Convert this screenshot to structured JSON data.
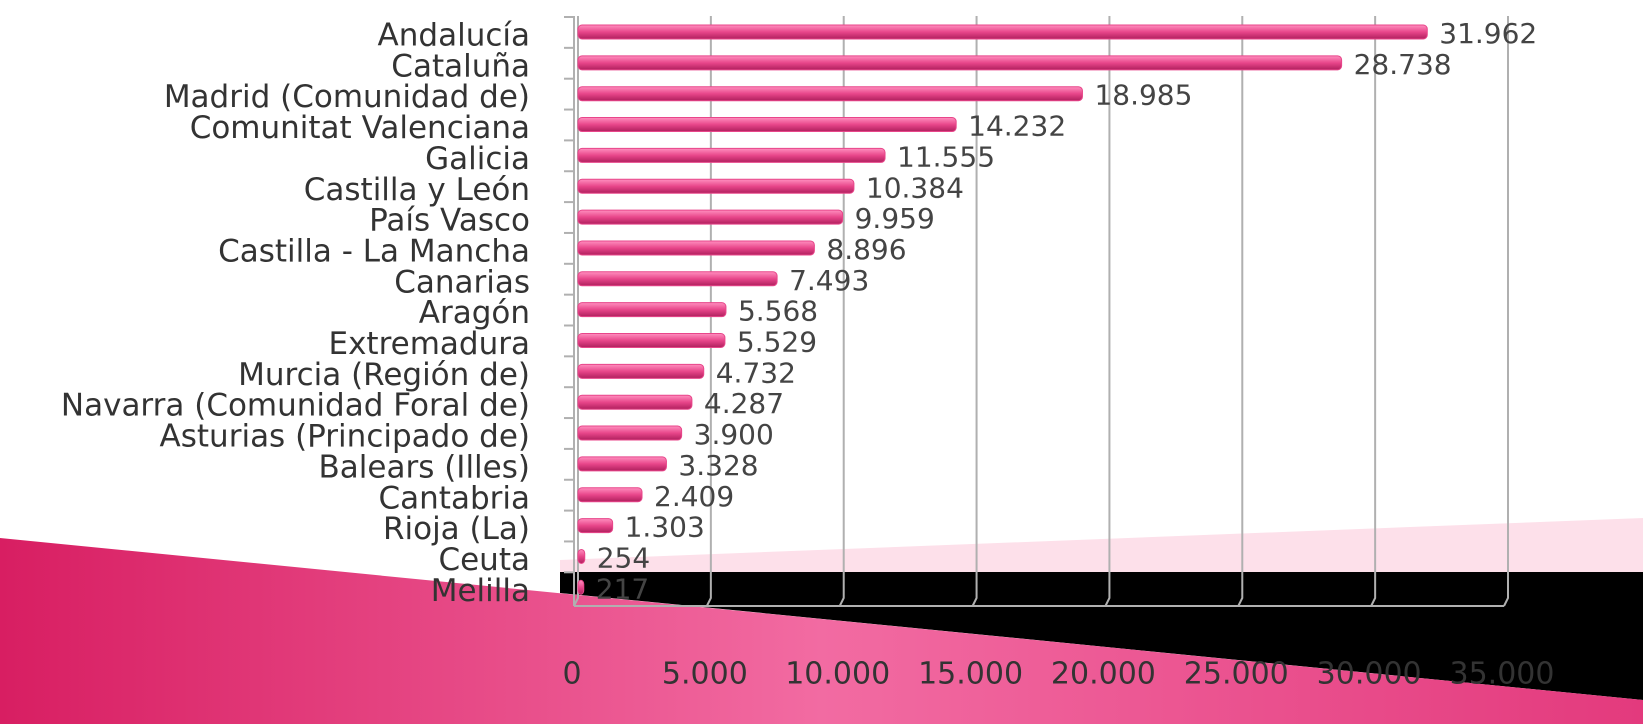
{
  "chart_data": {
    "type": "bar",
    "orientation": "horizontal",
    "categories": [
      "Andalucía",
      "Cataluña",
      "Madrid (Comunidad de)",
      "Comunitat Valenciana",
      "Galicia",
      "Castilla y León",
      "País Vasco",
      "Castilla - La Mancha",
      "Canarias",
      "Aragón",
      "Extremadura",
      "Murcia (Región de)",
      "Navarra (Comunidad Foral de)",
      "Asturias (Principado de)",
      "Balears (Illes)",
      "Cantabria",
      "Rioja (La)",
      "Ceuta",
      "Melilla"
    ],
    "values": [
      31962,
      28738,
      18985,
      14232,
      11555,
      10384,
      9959,
      8896,
      7493,
      5568,
      5529,
      4732,
      4287,
      3900,
      3328,
      2409,
      1303,
      254,
      217
    ],
    "value_labels": [
      "31.962",
      "28.738",
      "18.985",
      "14.232",
      "11.555",
      "10.384",
      "9.959",
      "8.896",
      "7.493",
      "5.568",
      "5.529",
      "4.732",
      "4.287",
      "3.900",
      "3.328",
      "2.409",
      "1.303",
      "254",
      "217"
    ],
    "color": "#e8468a",
    "xlim": [
      0,
      35000
    ],
    "xticks": [
      0,
      {
        "value": 5000,
        "label": "5.000"
      },
      {
        "value": 10000,
        "label": "10.000"
      },
      {
        "value": 15000,
        "label": "15.000"
      },
      {
        "value": 20000,
        "label": "20.000"
      },
      {
        "value": 25000,
        "label": "25.000"
      },
      {
        "value": 30000,
        "label": "30.000"
      },
      {
        "value": 35000,
        "label": "35.000"
      }
    ],
    "grid": true
  }
}
